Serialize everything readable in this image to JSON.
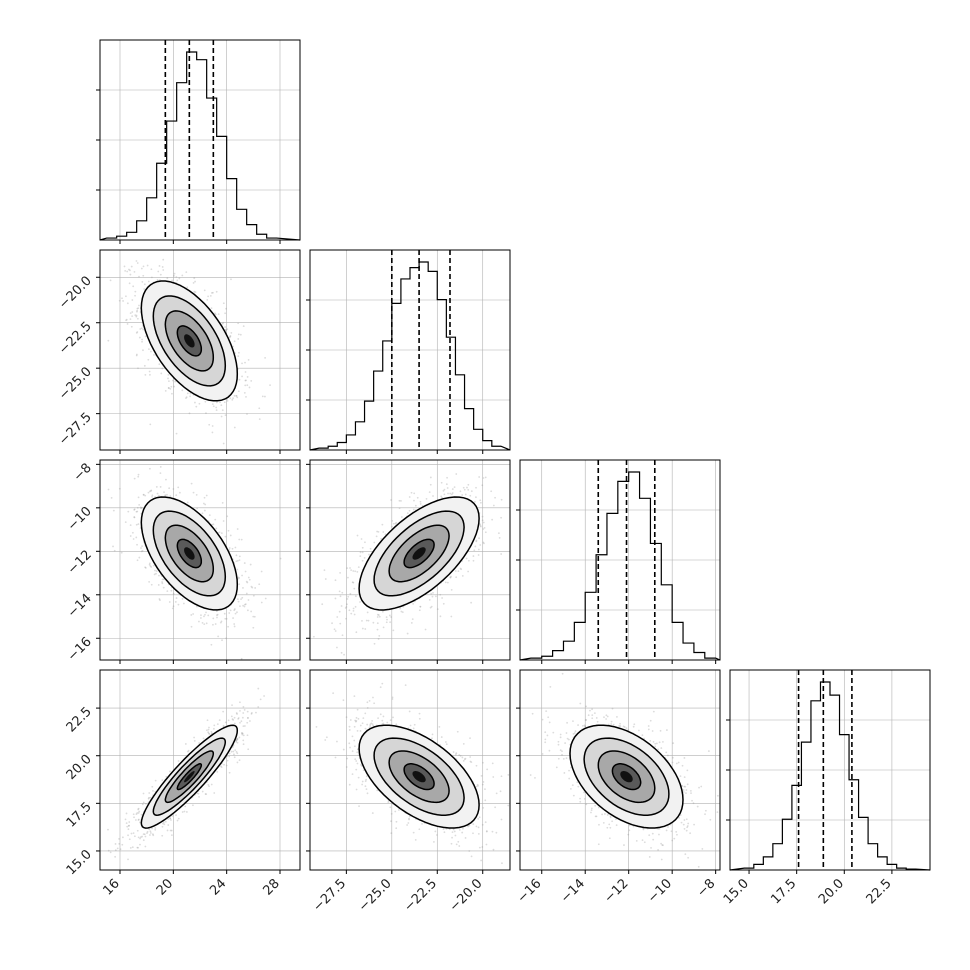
{
  "chart_data": {
    "type": "corner",
    "title": "",
    "dimensions": [
      {
        "xlim": [
          14.5,
          29.5
        ],
        "ticks": [
          16,
          20,
          24,
          28
        ],
        "tick_labels": [
          "16",
          "20",
          "24",
          "28"
        ],
        "quantiles": [
          19.4,
          21.2,
          23.0
        ],
        "hist_bins": [
          15.0,
          15.75,
          16.5,
          17.25,
          18.0,
          18.75,
          19.5,
          20.25,
          21.0,
          21.75,
          22.5,
          23.25,
          24.0,
          24.75,
          25.5,
          26.25,
          27.0
        ],
        "hist_values": [
          0.01,
          0.02,
          0.04,
          0.1,
          0.22,
          0.4,
          0.62,
          0.82,
          0.98,
          0.94,
          0.74,
          0.54,
          0.32,
          0.16,
          0.08,
          0.03,
          0.01
        ]
      },
      {
        "xlim": [
          -29.5,
          -18.5
        ],
        "ticks": [
          -27.5,
          -25.0,
          -22.5,
          -20.0
        ],
        "tick_labels": [
          "−27.5",
          "−25.0",
          "−22.5",
          "−20.0"
        ],
        "quantiles": [
          -25.0,
          -23.5,
          -21.8
        ],
        "hist_bins": [
          -29.0,
          -28.5,
          -28.0,
          -27.5,
          -27.0,
          -26.5,
          -26.0,
          -25.5,
          -25.0,
          -24.5,
          -24.0,
          -23.5,
          -23.0,
          -22.5,
          -22.0,
          -21.5,
          -21.0,
          -20.5,
          -20.0,
          -19.5
        ],
        "hist_values": [
          0.01,
          0.02,
          0.04,
          0.08,
          0.15,
          0.26,
          0.42,
          0.58,
          0.78,
          0.91,
          0.97,
          1.0,
          0.95,
          0.8,
          0.6,
          0.4,
          0.22,
          0.11,
          0.05,
          0.02
        ]
      },
      {
        "xlim": [
          -17.0,
          -7.8
        ],
        "ticks": [
          -16,
          -14,
          -12,
          -10,
          -8
        ],
        "tick_labels": [
          "−16",
          "−14",
          "−12",
          "−10",
          "−8"
        ],
        "quantiles": [
          -13.4,
          -12.1,
          -10.8
        ],
        "hist_bins": [
          -16.5,
          -16.0,
          -15.5,
          -15.0,
          -14.5,
          -14.0,
          -13.5,
          -13.0,
          -12.5,
          -12.0,
          -11.5,
          -11.0,
          -10.5,
          -10.0,
          -9.5,
          -9.0,
          -8.5
        ],
        "hist_values": [
          0.01,
          0.02,
          0.05,
          0.1,
          0.2,
          0.36,
          0.56,
          0.78,
          0.95,
          1.0,
          0.86,
          0.62,
          0.4,
          0.2,
          0.09,
          0.04,
          0.01
        ]
      },
      {
        "xlim": [
          14.0,
          24.5
        ],
        "ticks": [
          15.0,
          17.5,
          20.0,
          22.5
        ],
        "tick_labels": [
          "15.0",
          "17.5",
          "20.0",
          "22.5"
        ],
        "quantiles": [
          17.6,
          18.9,
          20.4
        ],
        "hist_bins": [
          14.75,
          15.25,
          15.75,
          16.25,
          16.75,
          17.25,
          17.75,
          18.25,
          18.75,
          19.25,
          19.75,
          20.25,
          20.75,
          21.25,
          21.75,
          22.25,
          22.75,
          23.25
        ],
        "hist_values": [
          0.01,
          0.03,
          0.07,
          0.14,
          0.27,
          0.45,
          0.68,
          0.9,
          1.0,
          0.93,
          0.72,
          0.48,
          0.28,
          0.14,
          0.07,
          0.03,
          0.01,
          0.005
        ]
      }
    ],
    "y_axes": [
      {
        "row": 1,
        "ylim": [
          -29.5,
          -18.5
        ],
        "ticks": [
          -27.5,
          -25.0,
          -22.5,
          -20.0
        ],
        "tick_labels": [
          "−27.5",
          "−25.0",
          "−22.5",
          "−20.0"
        ]
      },
      {
        "row": 2,
        "ylim": [
          -17.0,
          -7.8
        ],
        "ticks": [
          -16,
          -14,
          -12,
          -10,
          -8
        ],
        "tick_labels": [
          "−16",
          "−14",
          "−12",
          "−10",
          "−8"
        ]
      },
      {
        "row": 3,
        "ylim": [
          14.0,
          24.5
        ],
        "ticks": [
          15.0,
          17.5,
          20.0,
          22.5
        ],
        "tick_labels": [
          "15.0",
          "17.5",
          "20.0",
          "22.5"
        ]
      }
    ],
    "pairs": [
      {
        "row": 1,
        "col": 0,
        "mean": [
          21.2,
          -23.5
        ],
        "std": [
          1.8,
          1.65
        ],
        "corr": -0.55
      },
      {
        "row": 2,
        "col": 0,
        "mean": [
          21.2,
          -12.1
        ],
        "std": [
          1.8,
          1.3
        ],
        "corr": -0.55
      },
      {
        "row": 2,
        "col": 1,
        "mean": [
          -23.5,
          -12.1
        ],
        "std": [
          1.65,
          1.3
        ],
        "corr": 0.62
      },
      {
        "row": 3,
        "col": 0,
        "mean": [
          21.2,
          18.9
        ],
        "std": [
          1.8,
          1.35
        ],
        "corr": 0.9
      },
      {
        "row": 3,
        "col": 1,
        "mean": [
          -23.5,
          18.9
        ],
        "std": [
          1.65,
          1.35
        ],
        "corr": -0.55
      },
      {
        "row": 3,
        "col": 2,
        "mean": [
          -12.1,
          18.9
        ],
        "std": [
          1.3,
          1.35
        ],
        "corr": -0.45
      }
    ],
    "contour_levels_sigma": [
      0.5,
      1.0,
      1.5,
      2.0
    ],
    "grid": true,
    "colors": {
      "line": "#000000",
      "grid": "#b0b0b0",
      "scatter": "#9a9a9a"
    }
  }
}
